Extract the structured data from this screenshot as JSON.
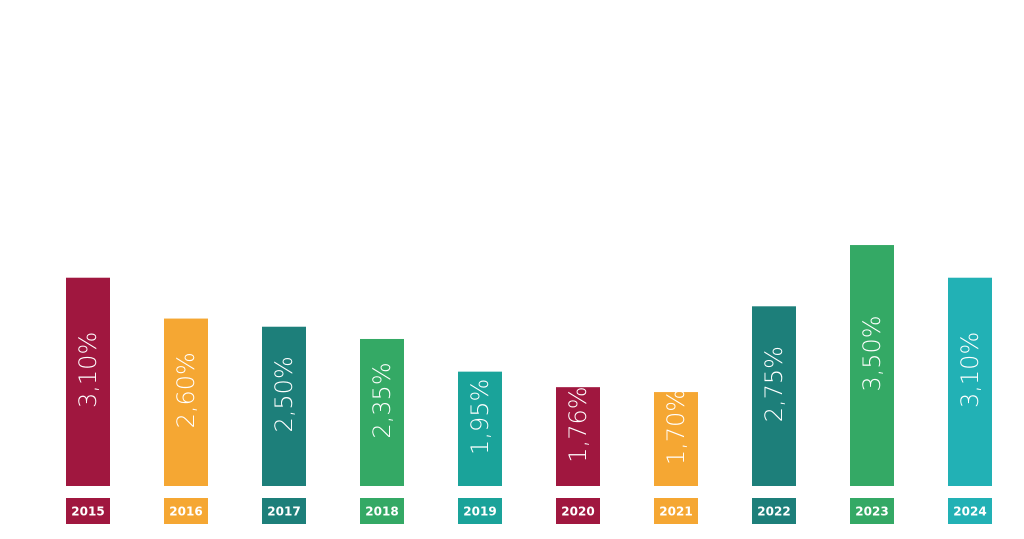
{
  "chart_data": {
    "type": "bar",
    "categories": [
      "2015",
      "2016",
      "2017",
      "2018",
      "2019",
      "2020",
      "2021",
      "2022",
      "2023",
      "2024"
    ],
    "values": [
      3.1,
      2.6,
      2.5,
      2.35,
      1.95,
      1.76,
      1.7,
      2.75,
      3.5,
      3.1
    ],
    "value_labels": [
      "3,10%",
      "2,60%",
      "2,50%",
      "2,35%",
      "1,95%",
      "1,76%",
      "1,70%",
      "2,75%",
      "3,50%",
      "3,10%"
    ],
    "colors": [
      "#a0173f",
      "#f5a733",
      "#1d7f7a",
      "#34a965",
      "#1aa39a",
      "#a0173f",
      "#f5a733",
      "#1d7f7a",
      "#34a965",
      "#22b1b5"
    ],
    "ylim": [
      0.55,
      6.5
    ]
  }
}
